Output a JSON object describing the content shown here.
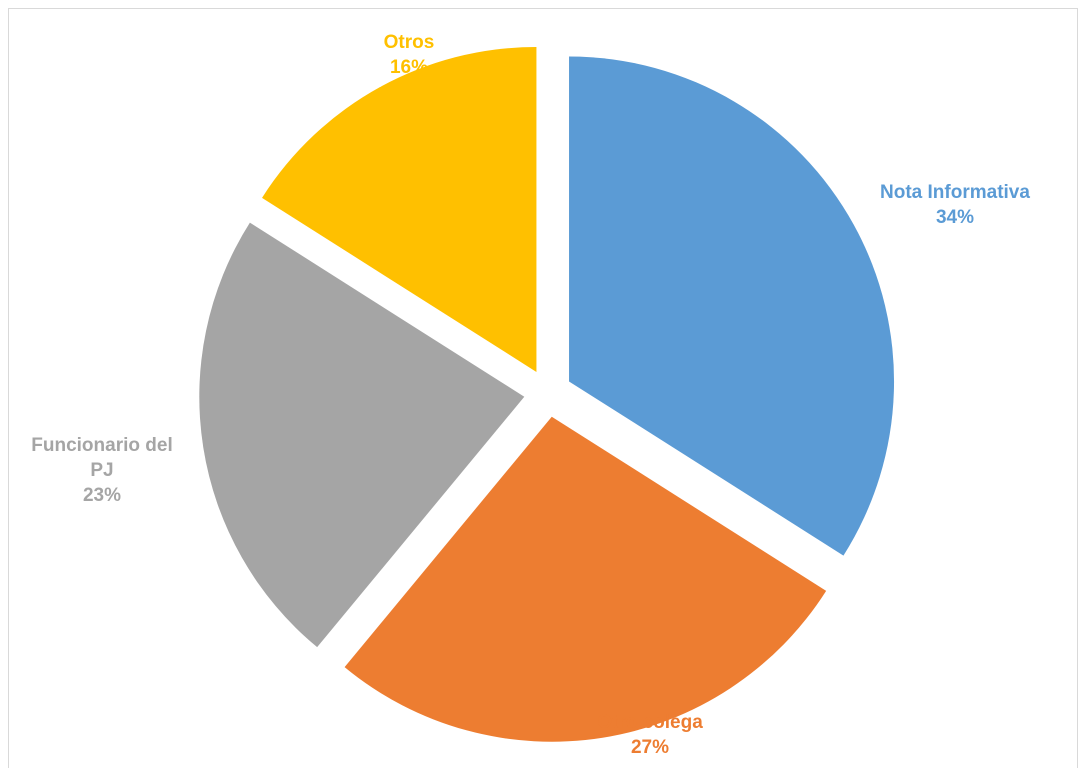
{
  "chart_data": {
    "type": "pie",
    "title": "",
    "legend": "none",
    "slices": [
      {
        "label": "Nota Informativa",
        "value": 34,
        "value_label": "34%",
        "color": "#5b9bd5"
      },
      {
        "label": "Otro colega",
        "value": 27,
        "value_label": "27%",
        "color": "#ed7d31"
      },
      {
        "label": "Funcionario del PJ",
        "value": 23,
        "value_label": "23%",
        "color": "#a5a5a5"
      },
      {
        "label": "Otros",
        "value": 16,
        "value_label": "16%",
        "color": "#ffc000"
      }
    ]
  }
}
